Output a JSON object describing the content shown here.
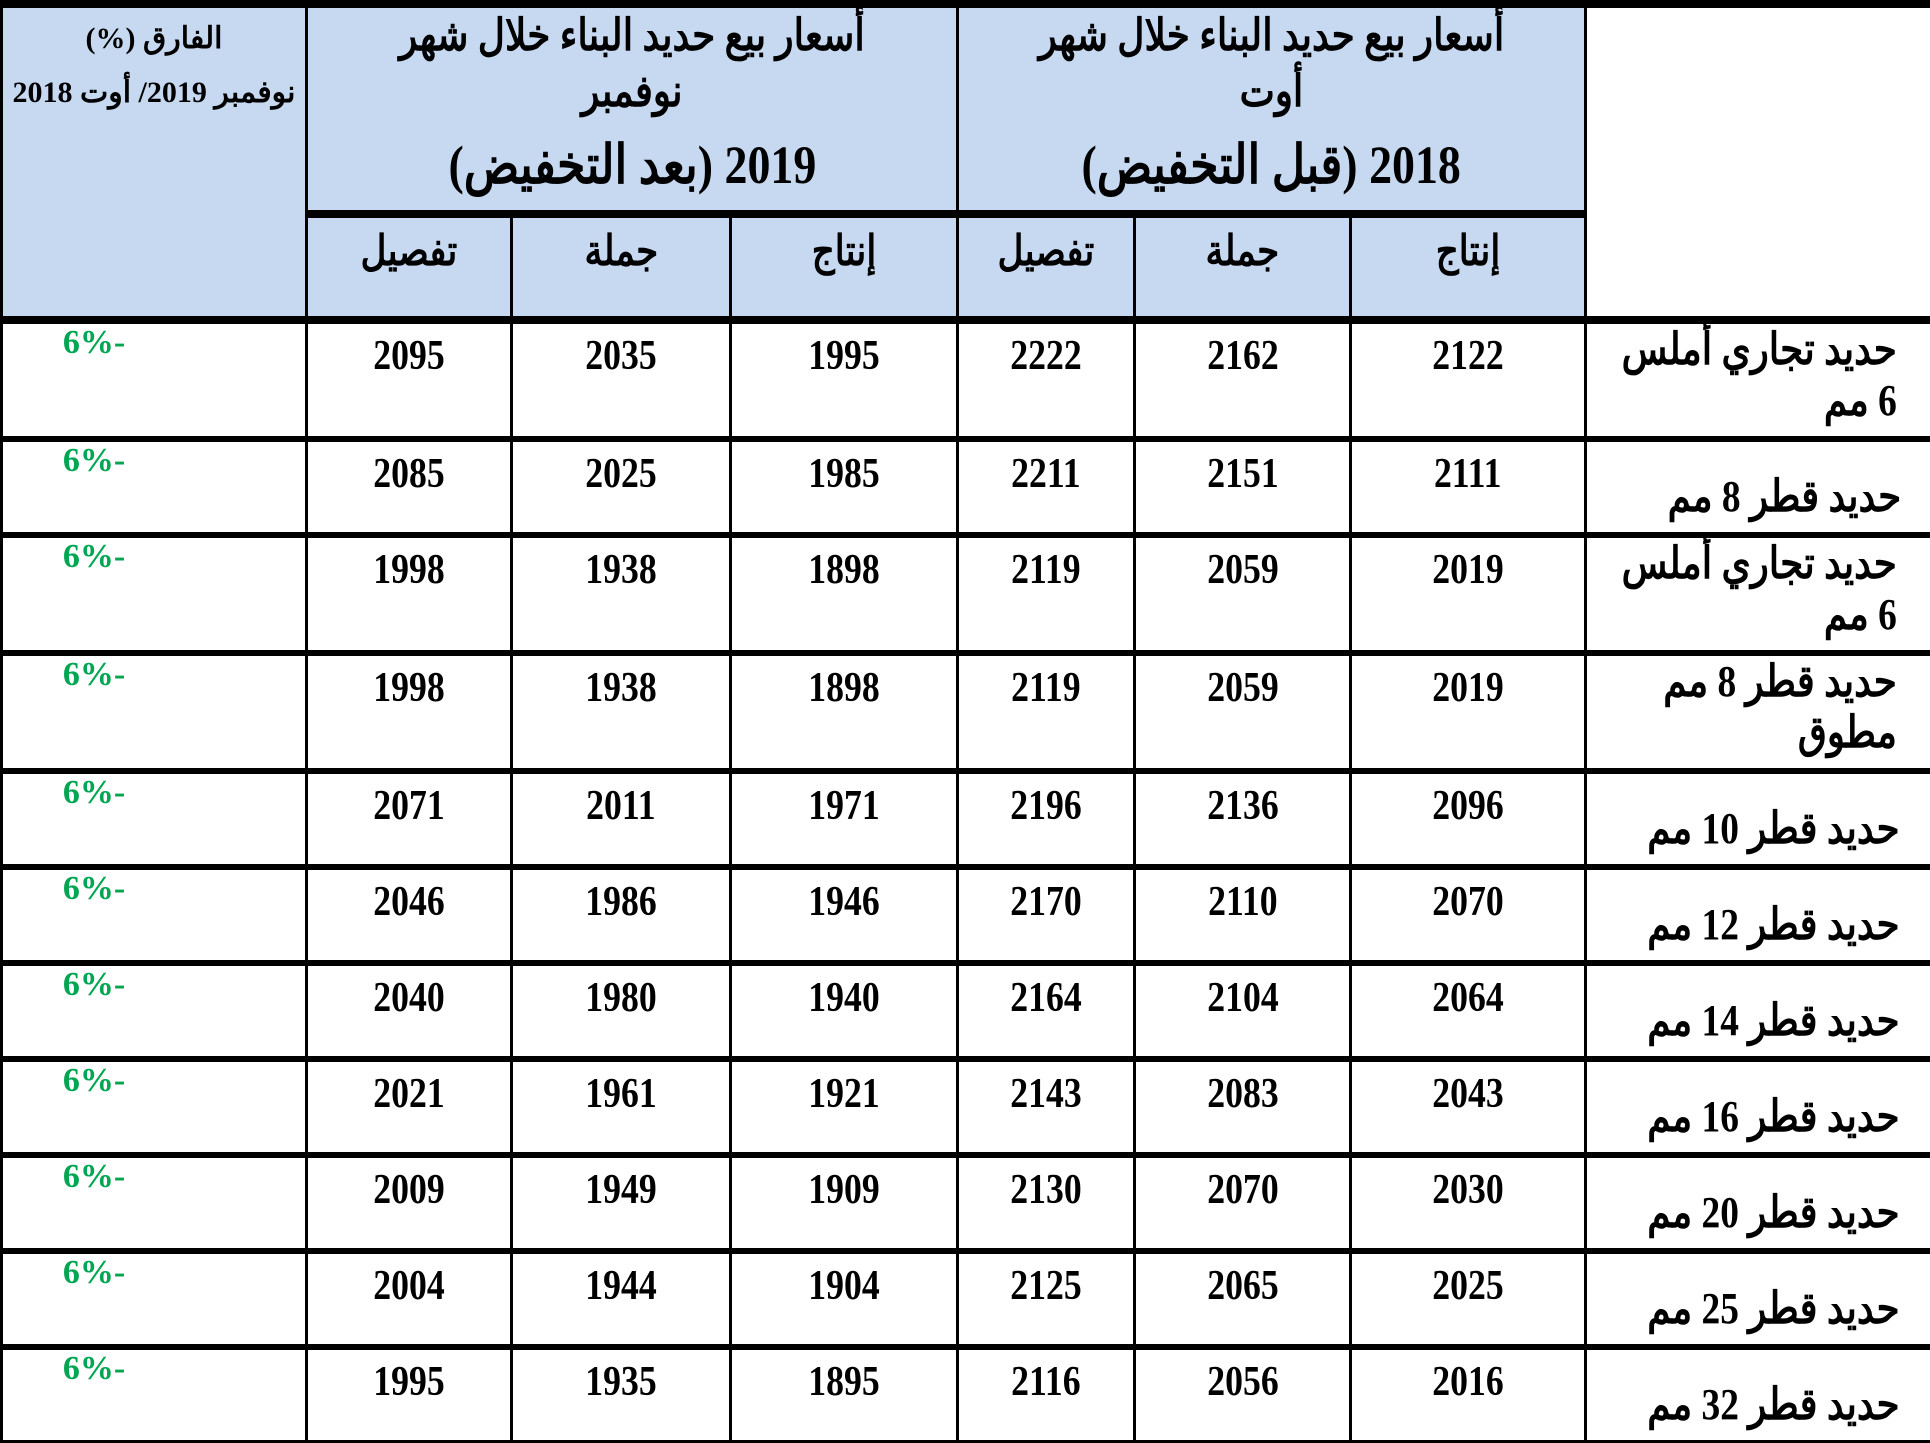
{
  "header": {
    "diff_title_line1": "الفارق (%)",
    "diff_title_line2": "نوفمبر 2019/ أوت 2018",
    "group_2018_line1": "أسعار بيع حديد البناء خلال شهر أوت",
    "group_2018_line2": "2018 (قبل التخفيض)",
    "group_2019_line1": "أسعار بيع حديد البناء خلال شهر نوفمبر",
    "group_2019_line2": "2019 (بعد التخفيض)",
    "col_production": "إنتاج",
    "col_wholesale": "جملة",
    "col_retail": "تفصيل"
  },
  "colors": {
    "header_bg": "#c6d9f0",
    "diff_text": "#00a651"
  },
  "rows": [
    {
      "label": "حديد تجاري أملس 6 مم",
      "p2018": "2122",
      "w2018": "2162",
      "r2018": "2222",
      "p2019": "1995",
      "w2019": "2035",
      "r2019": "2095",
      "diff": "6%-"
    },
    {
      "label": "حديد قطر 8 مم",
      "p2018": "2111",
      "w2018": "2151",
      "r2018": "2211",
      "p2019": "1985",
      "w2019": "2025",
      "r2019": "2085",
      "diff": "6%-"
    },
    {
      "label": "حديد تجاري أملس 6 مم",
      "p2018": "2019",
      "w2018": "2059",
      "r2018": "2119",
      "p2019": "1898",
      "w2019": "1938",
      "r2019": "1998",
      "diff": "6%-"
    },
    {
      "label": "حديد قطر 8 مم مطوق",
      "p2018": "2019",
      "w2018": "2059",
      "r2018": "2119",
      "p2019": "1898",
      "w2019": "1938",
      "r2019": "1998",
      "diff": "6%-"
    },
    {
      "label": "حديد قطر 10 مم",
      "p2018": "2096",
      "w2018": "2136",
      "r2018": "2196",
      "p2019": "1971",
      "w2019": "2011",
      "r2019": "2071",
      "diff": "6%-"
    },
    {
      "label": "حديد قطر 12 مم",
      "p2018": "2070",
      "w2018": "2110",
      "r2018": "2170",
      "p2019": "1946",
      "w2019": "1986",
      "r2019": "2046",
      "diff": "6%-"
    },
    {
      "label": "حديد قطر 14 مم",
      "p2018": "2064",
      "w2018": "2104",
      "r2018": "2164",
      "p2019": "1940",
      "w2019": "1980",
      "r2019": "2040",
      "diff": "6%-"
    },
    {
      "label": "حديد قطر 16 مم",
      "p2018": "2043",
      "w2018": "2083",
      "r2018": "2143",
      "p2019": "1921",
      "w2019": "1961",
      "r2019": "2021",
      "diff": "6%-"
    },
    {
      "label": "حديد قطر 20 مم",
      "p2018": "2030",
      "w2018": "2070",
      "r2018": "2130",
      "p2019": "1909",
      "w2019": "1949",
      "r2019": "2009",
      "diff": "6%-"
    },
    {
      "label": "حديد قطر 25 مم",
      "p2018": "2025",
      "w2018": "2065",
      "r2018": "2125",
      "p2019": "1904",
      "w2019": "1944",
      "r2019": "2004",
      "diff": "6%-"
    },
    {
      "label": "حديد قطر 32 مم",
      "p2018": "2016",
      "w2018": "2056",
      "r2018": "2116",
      "p2019": "1895",
      "w2019": "1935",
      "r2019": "1995",
      "diff": "6%-"
    }
  ]
}
